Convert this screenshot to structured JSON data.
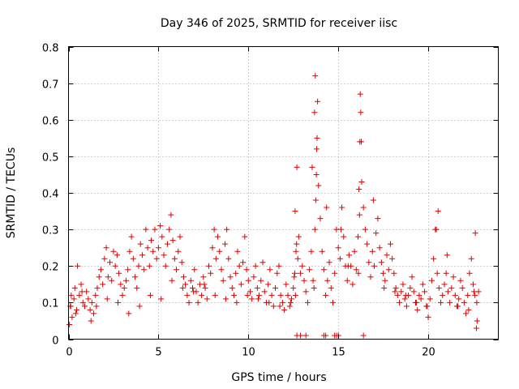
{
  "chart_data": {
    "type": "scatter",
    "title": "Day 346 of 2025, SRMTID for receiver iisc",
    "xlabel": "GPS time / hours",
    "ylabel": "SRMTID / TECUs",
    "xlim": [
      0,
      23.9
    ],
    "ylim": [
      0,
      0.8
    ],
    "x_ticks": [
      0,
      5,
      10,
      15,
      20
    ],
    "x_tick_labels": [
      "0",
      "5",
      "10",
      "15",
      "20"
    ],
    "y_ticks": [
      0,
      0.1,
      0.2,
      0.3,
      0.4,
      0.5,
      0.6,
      0.7,
      0.8
    ],
    "y_tick_labels": [
      "0",
      "0.1",
      "0.2",
      "0.3",
      "0.4",
      "0.5",
      "0.6",
      "0.7",
      "0.8"
    ],
    "grid": true,
    "marker": "+",
    "color": "#e00000",
    "series": [
      {
        "name": "SRMTID",
        "x": [
          0.05,
          0.1,
          0.15,
          0.2,
          0.3,
          0.35,
          0.45,
          0.5,
          0.6,
          0.7,
          0.8,
          0.9,
          1.0,
          1.1,
          1.2,
          1.3,
          1.4,
          1.5,
          1.6,
          1.7,
          1.8,
          1.9,
          2.0,
          2.1,
          2.2,
          2.3,
          2.4,
          2.5,
          2.6,
          2.7,
          2.8,
          2.9,
          3.0,
          3.1,
          3.2,
          3.3,
          3.4,
          3.5,
          3.6,
          3.7,
          3.8,
          3.9,
          4.0,
          4.1,
          4.2,
          4.3,
          4.4,
          4.5,
          4.6,
          4.7,
          4.8,
          4.9,
          5.0,
          5.1,
          5.2,
          5.3,
          5.4,
          5.5,
          5.6,
          5.7,
          5.8,
          5.9,
          6.0,
          6.1,
          6.2,
          6.3,
          6.4,
          6.5,
          6.6,
          6.7,
          6.8,
          6.9,
          7.0,
          7.1,
          7.2,
          7.3,
          7.4,
          7.5,
          7.6,
          7.7,
          7.8,
          7.9,
          8.0,
          8.1,
          8.2,
          8.3,
          8.4,
          8.5,
          8.6,
          8.7,
          8.8,
          8.9,
          9.0,
          9.1,
          9.2,
          9.3,
          9.4,
          9.5,
          9.6,
          9.7,
          9.8,
          9.9,
          10.0,
          10.1,
          10.2,
          10.3,
          10.4,
          10.5,
          10.6,
          10.7,
          10.8,
          10.9,
          11.0,
          11.1,
          11.2,
          11.3,
          11.4,
          11.5,
          11.6,
          11.7,
          11.8,
          11.9,
          12.0,
          12.1,
          12.2,
          12.3,
          12.4,
          12.5,
          12.55,
          12.6,
          12.65,
          12.7,
          12.75,
          12.8,
          12.9,
          13.0,
          13.1,
          13.2,
          13.3,
          13.4,
          13.5,
          13.6,
          13.65,
          13.7,
          13.75,
          13.8,
          13.85,
          13.9,
          14.0,
          14.1,
          14.2,
          14.3,
          14.4,
          14.5,
          14.6,
          14.7,
          14.8,
          14.9,
          15.0,
          15.1,
          15.2,
          15.3,
          15.4,
          15.5,
          15.6,
          15.7,
          15.8,
          15.9,
          16.0,
          16.1,
          16.15,
          16.2,
          16.25,
          16.3,
          16.4,
          16.5,
          16.6,
          16.7,
          16.8,
          16.9,
          17.0,
          17.1,
          17.2,
          17.3,
          17.4,
          17.5,
          17.6,
          17.7,
          17.8,
          17.9,
          18.0,
          18.1,
          18.2,
          18.3,
          18.4,
          18.5,
          18.6,
          18.7,
          18.8,
          18.9,
          19.0,
          19.1,
          19.2,
          19.3,
          19.4,
          19.5,
          19.6,
          19.7,
          19.8,
          19.9,
          20.0,
          20.1,
          20.2,
          20.3,
          20.4,
          20.5,
          20.6,
          20.7,
          20.8,
          20.9,
          21.0,
          21.1,
          21.2,
          21.3,
          21.4,
          21.5,
          21.6,
          21.7,
          21.8,
          21.9,
          22.0,
          22.1,
          22.2,
          22.3,
          22.4,
          22.5,
          22.6,
          22.7,
          22.8,
          0.12,
          0.4,
          0.75,
          1.25,
          1.55,
          2.15,
          2.75,
          3.35,
          3.95,
          4.55,
          5.15,
          5.75,
          6.35,
          6.95,
          7.55,
          8.15,
          8.75,
          9.35,
          9.95,
          10.55,
          11.15,
          11.75,
          12.35,
          12.58,
          12.62,
          12.68,
          13.55,
          13.68,
          13.72,
          13.78,
          13.82,
          14.35,
          15.15,
          15.55,
          16.12,
          16.18,
          16.22,
          16.28,
          16.95,
          17.55,
          18.15,
          18.75,
          19.35,
          19.95,
          20.45,
          20.55,
          21.05,
          21.65,
          22.25,
          22.55,
          22.62,
          22.68,
          22.72,
          12.7,
          12.9,
          13.2,
          14.2,
          14.3,
          14.8,
          14.9,
          15.0,
          16.4
        ],
        "y": [
          0.04,
          0.09,
          0.12,
          0.06,
          0.11,
          0.14,
          0.08,
          0.2,
          0.12,
          0.15,
          0.1,
          0.09,
          0.13,
          0.11,
          0.08,
          0.1,
          0.07,
          0.12,
          0.14,
          0.17,
          0.19,
          0.15,
          0.22,
          0.25,
          0.17,
          0.21,
          0.16,
          0.24,
          0.2,
          0.23,
          0.18,
          0.15,
          0.12,
          0.14,
          0.16,
          0.19,
          0.24,
          0.28,
          0.22,
          0.17,
          0.14,
          0.2,
          0.26,
          0.23,
          0.19,
          0.3,
          0.25,
          0.2,
          0.27,
          0.24,
          0.3,
          0.22,
          0.25,
          0.31,
          0.28,
          0.23,
          0.2,
          0.26,
          0.3,
          0.34,
          0.27,
          0.22,
          0.19,
          0.24,
          0.28,
          0.21,
          0.17,
          0.15,
          0.12,
          0.1,
          0.16,
          0.14,
          0.19,
          0.13,
          0.1,
          0.15,
          0.12,
          0.17,
          0.14,
          0.11,
          0.2,
          0.18,
          0.25,
          0.3,
          0.22,
          0.28,
          0.24,
          0.19,
          0.16,
          0.26,
          0.3,
          0.22,
          0.17,
          0.14,
          0.12,
          0.18,
          0.24,
          0.2,
          0.15,
          0.21,
          0.28,
          0.19,
          0.16,
          0.13,
          0.11,
          0.17,
          0.2,
          0.14,
          0.12,
          0.16,
          0.21,
          0.13,
          0.1,
          0.15,
          0.19,
          0.12,
          0.09,
          0.14,
          0.18,
          0.2,
          0.12,
          0.1,
          0.08,
          0.15,
          0.12,
          0.09,
          0.11,
          0.14,
          0.17,
          0.35,
          0.24,
          0.47,
          0.22,
          0.28,
          0.18,
          0.2,
          0.16,
          0.13,
          0.1,
          0.19,
          0.24,
          0.16,
          0.14,
          0.3,
          0.38,
          0.52,
          0.65,
          0.42,
          0.33,
          0.24,
          0.19,
          0.12,
          0.16,
          0.21,
          0.14,
          0.1,
          0.18,
          0.3,
          0.25,
          0.22,
          0.36,
          0.28,
          0.2,
          0.16,
          0.23,
          0.2,
          0.15,
          0.24,
          0.19,
          0.28,
          0.41,
          0.54,
          0.62,
          0.43,
          0.36,
          0.3,
          0.26,
          0.21,
          0.17,
          0.24,
          0.2,
          0.29,
          0.33,
          0.25,
          0.21,
          0.18,
          0.16,
          0.23,
          0.19,
          0.26,
          0.22,
          0.18,
          0.14,
          0.12,
          0.1,
          0.13,
          0.15,
          0.11,
          0.09,
          0.12,
          0.14,
          0.17,
          0.13,
          0.1,
          0.08,
          0.12,
          0.11,
          0.15,
          0.13,
          0.09,
          0.06,
          0.11,
          0.16,
          0.22,
          0.3,
          0.18,
          0.14,
          0.1,
          0.12,
          0.15,
          0.18,
          0.13,
          0.1,
          0.14,
          0.17,
          0.12,
          0.09,
          0.11,
          0.16,
          0.14,
          0.1,
          0.07,
          0.12,
          0.18,
          0.22,
          0.15,
          0.12,
          0.1,
          0.13,
          0.09,
          0.07,
          0.13,
          0.05,
          0.09,
          0.11,
          0.1,
          0.07,
          0.09,
          0.12,
          0.11,
          0.16,
          0.14,
          0.13,
          0.15,
          0.12,
          0.11,
          0.1,
          0.12,
          0.11,
          0.1,
          0.09,
          0.1,
          0.18,
          0.12,
          0.26,
          0.47,
          0.62,
          0.72,
          0.45,
          0.55,
          0.36,
          0.3,
          0.2,
          0.18,
          0.34,
          0.67,
          0.54,
          0.38,
          0.14,
          0.13,
          0.12,
          0.1,
          0.09,
          0.3,
          0.35,
          0.23,
          0.09,
          0.08,
          0.13,
          0.29,
          0.03,
          0.05,
          0.01,
          0.01,
          0.01,
          0.01,
          0.01,
          0.01,
          0.01,
          0.01,
          0.01
        ]
      }
    ]
  }
}
